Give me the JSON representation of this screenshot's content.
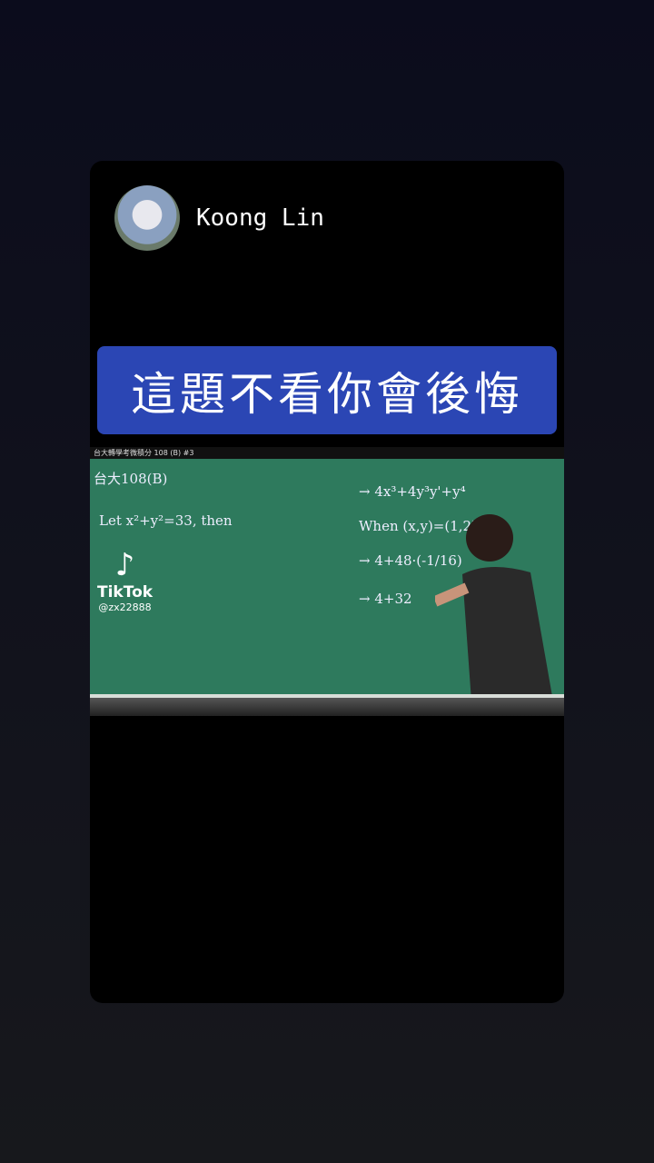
{
  "story": {
    "author": "Koong Lin",
    "caption": "這題不看你會後悔",
    "video": {
      "header": "台大轉學考微積分 108 (B) #3",
      "watermark": "TikTok",
      "handle": "@zx22888",
      "board": [
        "台大108(B)",
        "Let x²+y²=33, then",
        "When (x,y)=(1,2)",
        "→ 4x³+4y³y'+y⁴",
        "→ 4+48·(-1/16)",
        "→ 4+32"
      ]
    }
  }
}
